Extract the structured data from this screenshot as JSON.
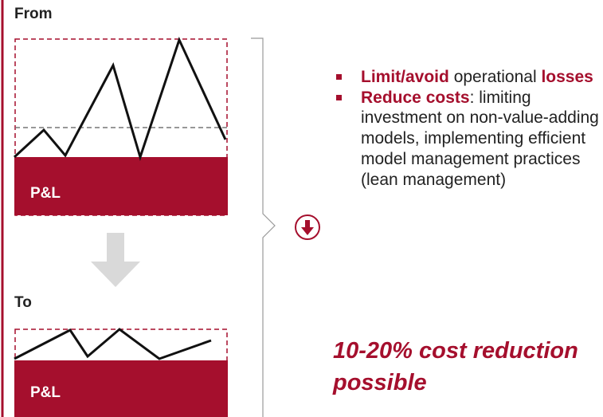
{
  "from_panel": {
    "label": "From",
    "box_label": "P&L"
  },
  "to_panel": {
    "label": "To",
    "box_label": "P&L"
  },
  "bullets": [
    [
      {
        "text": "Limit/avoid",
        "emphasis": true
      },
      {
        "text": " operational ",
        "emphasis": false
      },
      {
        "text": "losses",
        "emphasis": true
      }
    ],
    [
      {
        "text": "Reduce costs",
        "emphasis": true
      },
      {
        "text": ": limiting investment on non-value-adding models, implementing efficient model management practices (lean management)",
        "emphasis": false
      }
    ]
  ],
  "conclusion": "10-20% cost reduction possible"
}
